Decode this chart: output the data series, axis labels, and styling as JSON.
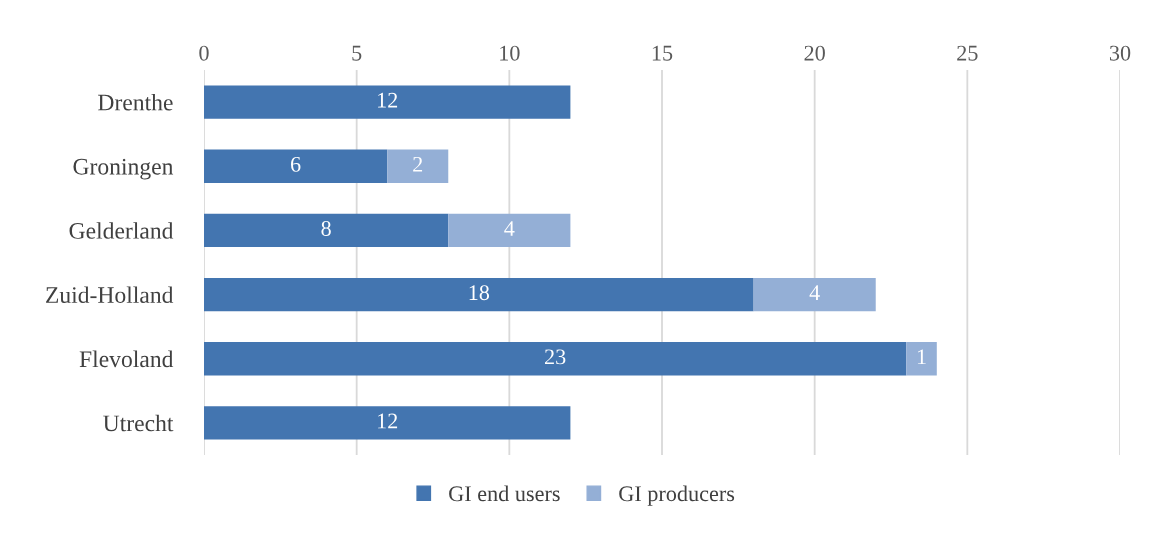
{
  "chart_data": {
    "type": "bar",
    "orientation": "horizontal",
    "stacked": true,
    "categories": [
      "Drenthe",
      "Groningen",
      "Gelderland",
      "Zuid-Holland",
      "Flevoland",
      "Utrecht"
    ],
    "series": [
      {
        "name": "GI end users",
        "color": "#4375b0",
        "values": [
          12,
          6,
          8,
          18,
          23,
          12
        ]
      },
      {
        "name": "GI producers",
        "color": "#94afd6",
        "values": [
          null,
          2,
          4,
          4,
          1,
          null
        ]
      }
    ],
    "xlim": [
      0,
      30
    ],
    "xticks": [
      0,
      5,
      10,
      15,
      20,
      25,
      30
    ],
    "grid": "x",
    "legend": "bottom",
    "data_labels": true
  }
}
